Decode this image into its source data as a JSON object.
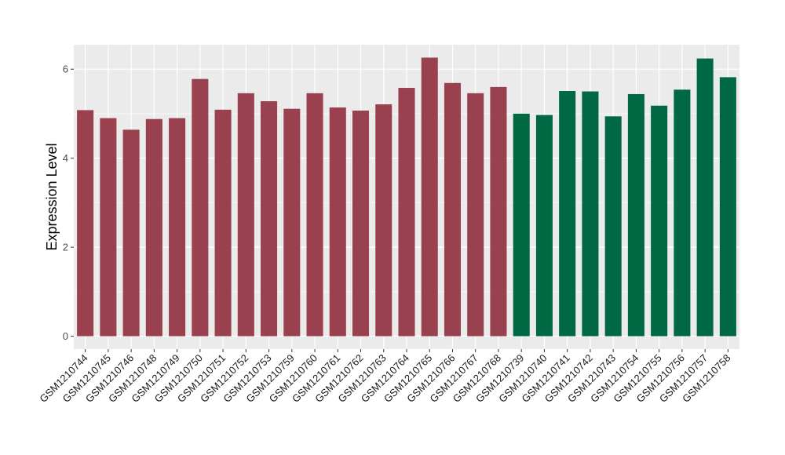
{
  "chart_data": {
    "type": "bar",
    "title": "",
    "xlabel": "",
    "ylabel": "Expression Level",
    "ylim": [
      -0.29,
      6.55
    ],
    "yticks": [
      0,
      2,
      4,
      6
    ],
    "grid": true,
    "legend": "none",
    "colors": {
      "group_1": "#9a4150",
      "group_2": "#006843",
      "panel_bg": "#ebebeb",
      "grid": "#ffffff"
    },
    "categories": [
      "GSM1210744",
      "GSM1210745",
      "GSM1210746",
      "GSM1210748",
      "GSM1210749",
      "GSM1210750",
      "GSM1210751",
      "GSM1210752",
      "GSM1210753",
      "GSM1210759",
      "GSM1210760",
      "GSM1210761",
      "GSM1210762",
      "GSM1210763",
      "GSM1210764",
      "GSM1210765",
      "GSM1210766",
      "GSM1210767",
      "GSM1210768",
      "GSM1210739",
      "GSM1210740",
      "GSM1210741",
      "GSM1210742",
      "GSM1210743",
      "GSM1210754",
      "GSM1210755",
      "GSM1210756",
      "GSM1210757",
      "GSM1210758"
    ],
    "values": [
      5.08,
      4.9,
      4.64,
      4.88,
      4.9,
      5.78,
      5.09,
      5.46,
      5.28,
      5.11,
      5.46,
      5.14,
      5.07,
      5.21,
      5.58,
      6.26,
      5.69,
      5.46,
      5.6,
      5.0,
      4.97,
      5.51,
      5.5,
      4.94,
      5.44,
      5.18,
      5.54,
      6.24,
      5.82
    ],
    "groups": [
      1,
      1,
      1,
      1,
      1,
      1,
      1,
      1,
      1,
      1,
      1,
      1,
      1,
      1,
      1,
      1,
      1,
      1,
      1,
      2,
      2,
      2,
      2,
      2,
      2,
      2,
      2,
      2,
      2
    ]
  }
}
